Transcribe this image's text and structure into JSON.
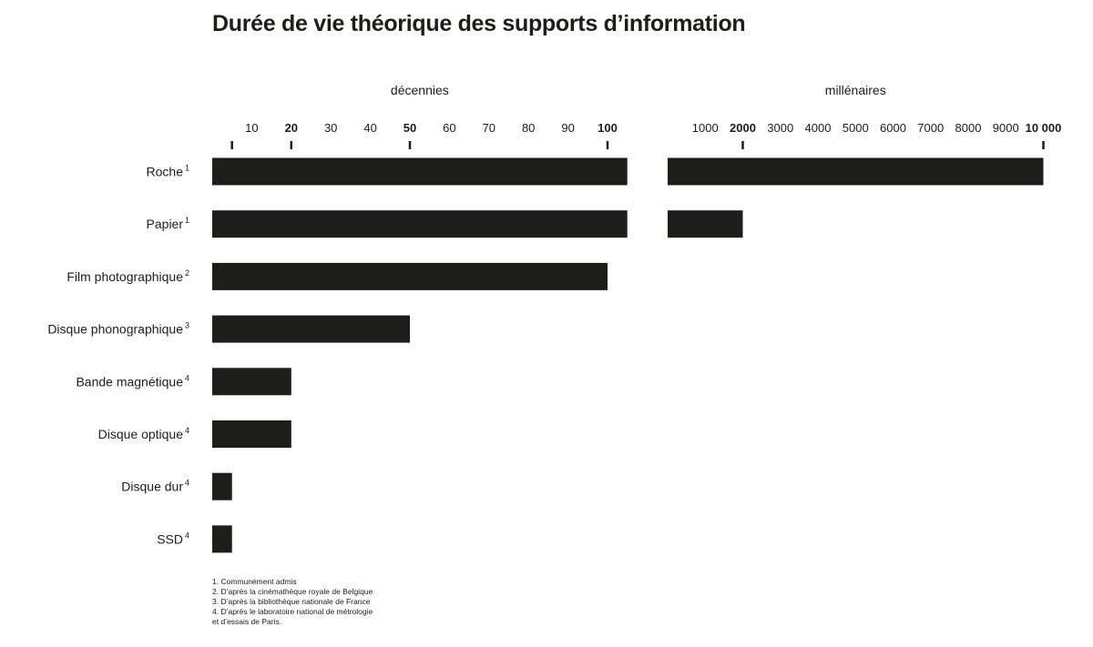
{
  "chart_data": {
    "type": "bar",
    "title": "Durée de vie théorique des supports d’information",
    "categories": [
      {
        "label": "Roche",
        "note": "1"
      },
      {
        "label": "Papier",
        "note": "1"
      },
      {
        "label": "Film photographique",
        "note": "2"
      },
      {
        "label": "Disque phonographique",
        "note": "3"
      },
      {
        "label": "Bande magnétique",
        "note": "4"
      },
      {
        "label": "Disque optique",
        "note": "4"
      },
      {
        "label": "Disque dur",
        "note": "4"
      },
      {
        "label": "SSD",
        "note": "4"
      }
    ],
    "values": [
      10000,
      2000,
      100,
      50,
      20,
      20,
      5,
      5
    ],
    "panels": [
      {
        "unit_label": "décennies",
        "unit_years": 10,
        "ticks": [
          {
            "label": "10",
            "value": 10,
            "bold": false,
            "mark": false
          },
          {
            "label": "20",
            "value": 20,
            "bold": true,
            "mark": true
          },
          {
            "label": "30",
            "value": 30,
            "bold": false,
            "mark": false
          },
          {
            "label": "40",
            "value": 40,
            "bold": false,
            "mark": false
          },
          {
            "label": "50",
            "value": 50,
            "bold": true,
            "mark": true
          },
          {
            "label": "60",
            "value": 60,
            "bold": false,
            "mark": false
          },
          {
            "label": "70",
            "value": 70,
            "bold": false,
            "mark": false
          },
          {
            "label": "80",
            "value": 80,
            "bold": false,
            "mark": false
          },
          {
            "label": "90",
            "value": 90,
            "bold": false,
            "mark": false
          },
          {
            "label": "100",
            "value": 100,
            "bold": true,
            "mark": true
          }
        ],
        "extra_marks": [
          5
        ]
      },
      {
        "unit_label": "millénaires",
        "unit_years": 1000,
        "ticks": [
          {
            "label": "1000",
            "value": 1000,
            "bold": false,
            "mark": false
          },
          {
            "label": "2000",
            "value": 2000,
            "bold": true,
            "mark": true
          },
          {
            "label": "3000",
            "value": 3000,
            "bold": false,
            "mark": false
          },
          {
            "label": "4000",
            "value": 4000,
            "bold": false,
            "mark": false
          },
          {
            "label": "5000",
            "value": 5000,
            "bold": false,
            "mark": false
          },
          {
            "label": "6000",
            "value": 6000,
            "bold": false,
            "mark": false
          },
          {
            "label": "7000",
            "value": 7000,
            "bold": false,
            "mark": false
          },
          {
            "label": "8000",
            "value": 8000,
            "bold": false,
            "mark": false
          },
          {
            "label": "9000",
            "value": 9000,
            "bold": false,
            "mark": false
          },
          {
            "label": "10 000",
            "value": 10000,
            "bold": true,
            "mark": true
          }
        ],
        "extra_marks": []
      }
    ],
    "bar_color": "#1d1d1b"
  },
  "footnotes": [
    "1. Communément admis",
    "2. D’après la cinémathèque royale de Belgique",
    "3. D’après la bibliothèque nationale de France",
    "4. D’après le laboratoire national de métrologie",
    "et d’essais de Paris."
  ]
}
